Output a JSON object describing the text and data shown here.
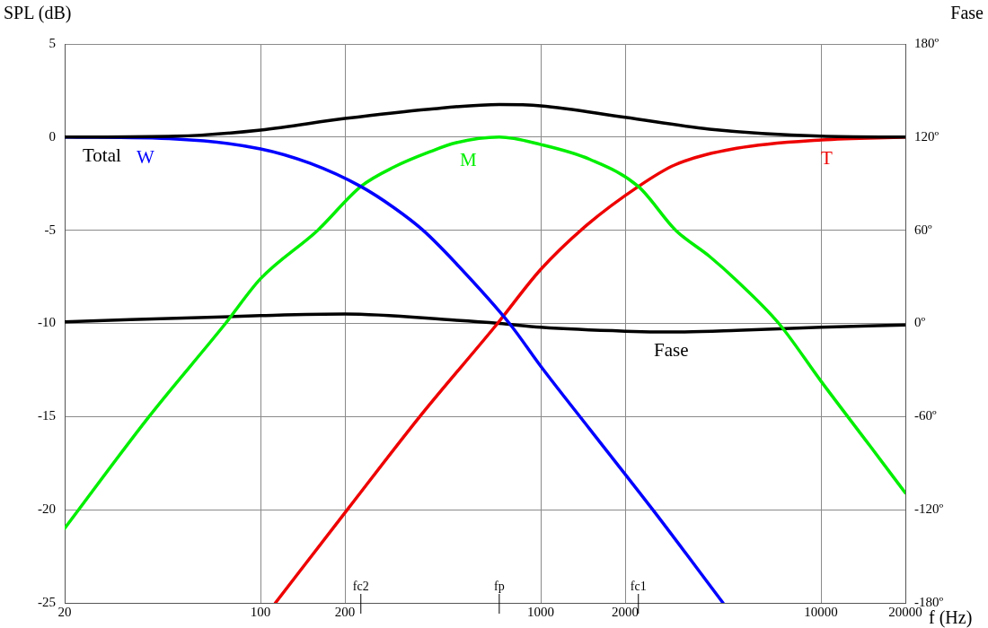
{
  "chart_data": {
    "type": "line",
    "xlabel": "f (Hz)",
    "ylabel": "SPL (dB)",
    "y2label": "Fase",
    "log": "x",
    "xlim": [
      20,
      20000
    ],
    "xticks": [
      20,
      100,
      200,
      1000,
      2000,
      10000,
      20000
    ],
    "ref_lines": [
      {
        "axis": "x",
        "value": 228,
        "label": "fc2"
      },
      {
        "axis": "x",
        "value": 711,
        "label": "fp"
      },
      {
        "axis": "x",
        "value": 2230,
        "label": "fc1"
      }
    ],
    "ylim": [
      -25,
      5
    ],
    "yticks": [
      -25,
      -20,
      -15,
      -10,
      -5,
      0,
      5
    ],
    "y2lim": [
      -180,
      180
    ],
    "y2ticks": [
      {
        "value": -180,
        "label": "-180º"
      },
      {
        "value": -120,
        "label": "-120º"
      },
      {
        "value": -60,
        "label": "-60º"
      },
      {
        "value": 0,
        "label": "0º"
      },
      {
        "value": 60,
        "label": "60º"
      },
      {
        "value": 120,
        "label": "120º"
      },
      {
        "value": 180,
        "label": "180º"
      }
    ],
    "grid": true,
    "legend": false,
    "marker": "none",
    "line_style": "solid",
    "series": [
      {
        "name": "Total",
        "color": "#000000",
        "x": [
          20,
          50,
          100,
          200,
          400,
          711,
          1000,
          2000,
          4000,
          10000,
          20000
        ],
        "values": [
          0,
          0.05,
          0.38,
          1.0,
          1.5,
          1.75,
          1.68,
          1.06,
          0.43,
          0.05,
          0
        ]
      },
      {
        "name": "W",
        "color": "#0000ff",
        "x": [
          20,
          50,
          100,
          150,
          228,
          300,
          380,
          500,
          773,
          1000,
          1500,
          2510,
          4470
        ],
        "values": [
          0,
          -0.1,
          -0.63,
          -1.4,
          -2.65,
          -3.8,
          -5,
          -6.8,
          -10,
          -12.3,
          -15.7,
          -20,
          -25
        ]
      },
      {
        "name": "M",
        "color": "#00ee00",
        "x": [
          20,
          40,
          75,
          100,
          160,
          228,
          300,
          400,
          500,
          711,
          1000,
          1500,
          2230,
          3030,
          4000,
          5000,
          7070,
          10000,
          15000,
          20000
        ],
        "values": [
          -21,
          -15,
          -10,
          -7.6,
          -5,
          -2.65,
          -1.6,
          -0.8,
          -0.3,
          0,
          -0.4,
          -1.2,
          -2.65,
          -5,
          -6.4,
          -7.7,
          -10,
          -13.1,
          -16.6,
          -19.1
        ]
      },
      {
        "name": "T",
        "color": "#ee0000",
        "x": [
          113,
          204,
          370,
          701,
          1000,
          1466,
          2230,
          3000,
          5000,
          10000,
          20000
        ],
        "values": [
          -25,
          -20,
          -15,
          -10,
          -7.1,
          -4.7,
          -2.65,
          -1.5,
          -0.6,
          -0.15,
          0
        ]
      },
      {
        "name": "Fase",
        "color": "#000000",
        "axis": "y2",
        "x": [
          20,
          100,
          200,
          500,
          711,
          1000,
          2000,
          3000,
          5000,
          10000,
          20000
        ],
        "values": [
          1,
          5,
          6,
          2,
          0,
          -2.5,
          -5,
          -5.5,
          -4.5,
          -2.4,
          -1
        ]
      }
    ]
  }
}
